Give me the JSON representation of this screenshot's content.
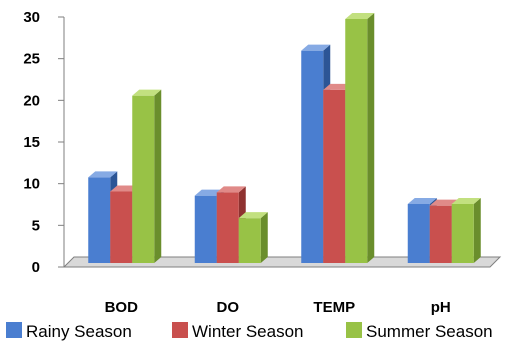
{
  "chart_data": {
    "type": "bar",
    "categories": [
      "BOD",
      "DO",
      "TEMP",
      "pH"
    ],
    "series": [
      {
        "name": "Rainy Season",
        "values": [
          11,
          8.8,
          26.2,
          7.8
        ]
      },
      {
        "name": "Winter Season",
        "values": [
          9.3,
          9.2,
          21.5,
          7.6
        ]
      },
      {
        "name": "Summer Season",
        "values": [
          20.8,
          6.1,
          30,
          7.8
        ]
      }
    ],
    "y_ticks": [
      "0",
      "5",
      "10",
      "15",
      "20",
      "25",
      "30"
    ],
    "ylim": [
      0,
      30
    ],
    "grid": false,
    "legend_position": "bottom",
    "colors": {
      "series": [
        {
          "front": "#4a7ed0",
          "side": "#2c5596",
          "top": "#86aae4"
        },
        {
          "front": "#c9504e",
          "side": "#8f3230",
          "top": "#e08a88"
        },
        {
          "front": "#98c246",
          "side": "#6a8e2c",
          "top": "#c2e07f"
        }
      ],
      "axis": "#7f7f7f",
      "floor": "#d9d9d9"
    }
  }
}
